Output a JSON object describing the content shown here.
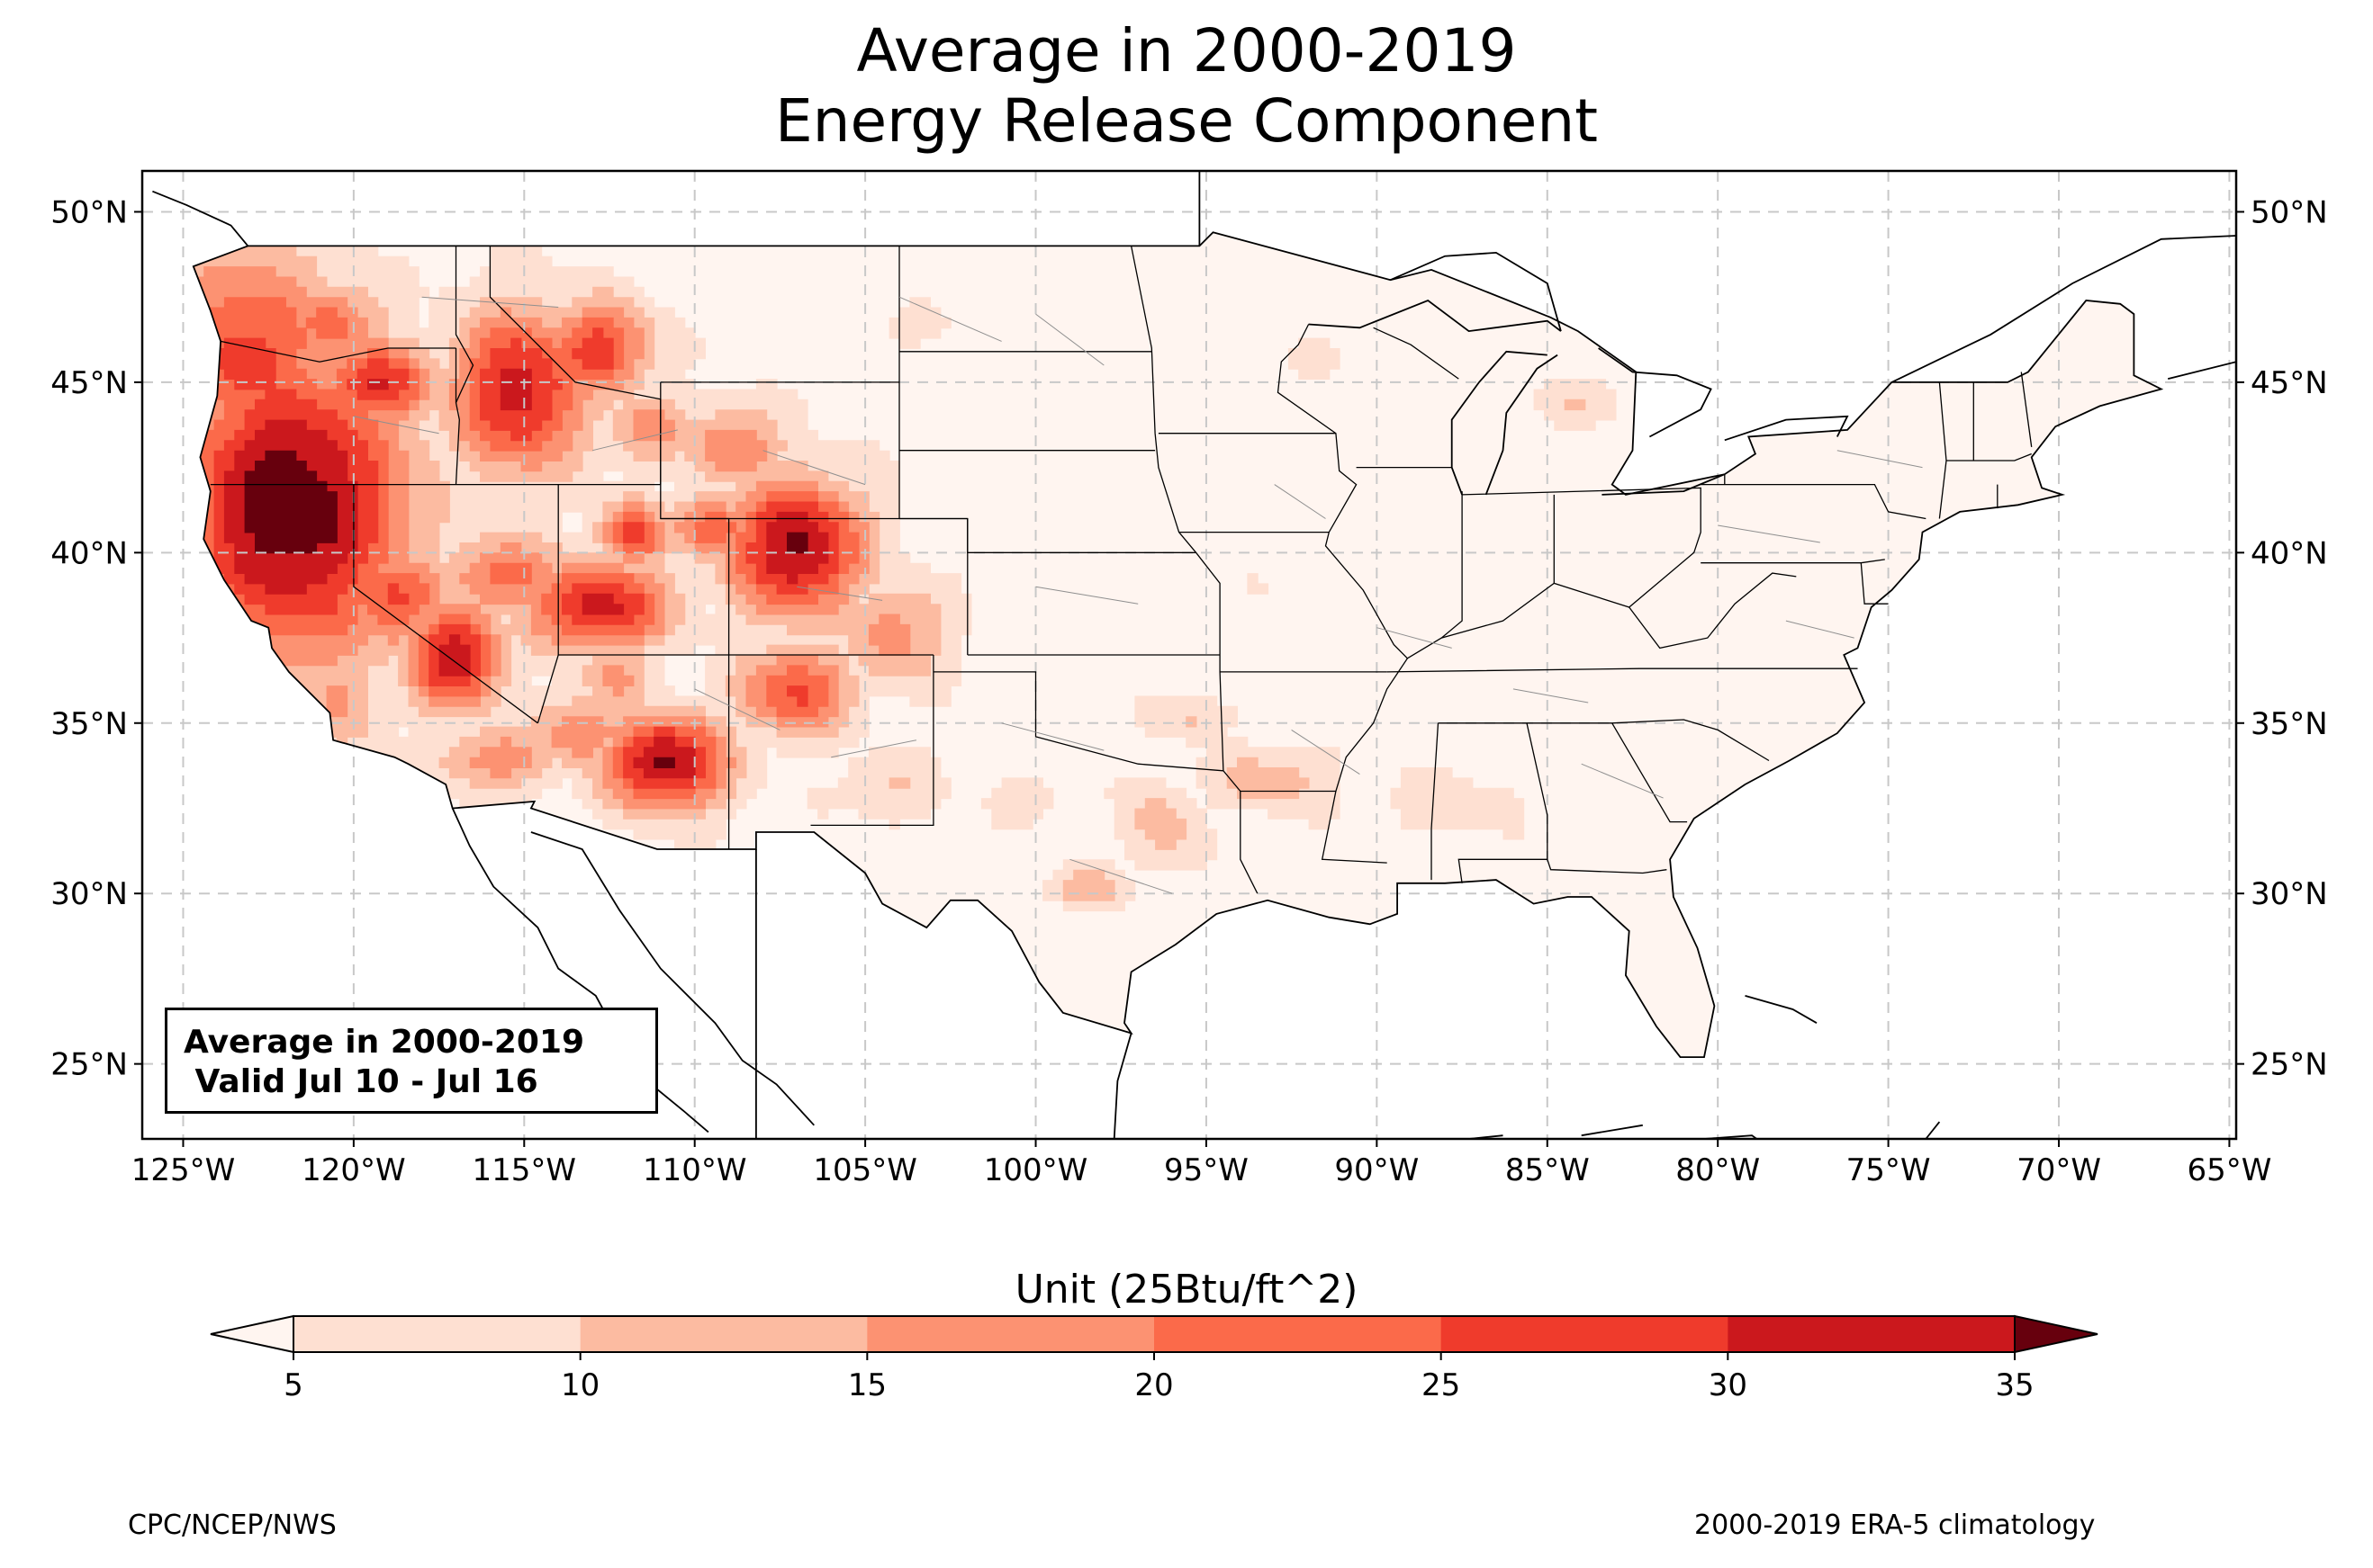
{
  "title": {
    "line1": "Average in 2000-2019",
    "line2": "Energy Release Component"
  },
  "map": {
    "lon_range": [
      -126.2,
      -64.8
    ],
    "lat_range": [
      22.8,
      51.2
    ],
    "lon_ticks": [
      {
        "value": -125,
        "label": "125°W"
      },
      {
        "value": -120,
        "label": "120°W"
      },
      {
        "value": -115,
        "label": "115°W"
      },
      {
        "value": -110,
        "label": "110°W"
      },
      {
        "value": -105,
        "label": "105°W"
      },
      {
        "value": -100,
        "label": "100°W"
      },
      {
        "value": -95,
        "label": "95°W"
      },
      {
        "value": -90,
        "label": "90°W"
      },
      {
        "value": -85,
        "label": "85°W"
      },
      {
        "value": -80,
        "label": "80°W"
      },
      {
        "value": -75,
        "label": "75°W"
      },
      {
        "value": -70,
        "label": "70°W"
      },
      {
        "value": -65,
        "label": "65°W"
      }
    ],
    "lat_ticks": [
      {
        "value": 25,
        "label": "25°N"
      },
      {
        "value": 30,
        "label": "30°N"
      },
      {
        "value": 35,
        "label": "35°N"
      },
      {
        "value": 40,
        "label": "40°N"
      },
      {
        "value": 45,
        "label": "45°N"
      },
      {
        "value": 50,
        "label": "50°N"
      }
    ],
    "gridlines": true
  },
  "legend_box": {
    "line1": "Average in 2000-2019",
    "line2": " Valid Jul 10 - Jul 16"
  },
  "colorbar": {
    "title": "Unit (25Btu/ft^2)",
    "levels": [
      5,
      10,
      15,
      20,
      25,
      30,
      35
    ],
    "colors": [
      "#fee0d2",
      "#fcbba1",
      "#fc9272",
      "#fb6a4a",
      "#ef3b2c",
      "#cb181d",
      "#a50f15"
    ],
    "under_color": "#fff5f0",
    "over_color": "#67000d",
    "extend": "both"
  },
  "field": {
    "levels": [
      5,
      10,
      15,
      20,
      25,
      30,
      35
    ],
    "background_value": 3,
    "blobs": [
      {
        "lon": -122.0,
        "lat": 41.2,
        "rx": 3.4,
        "ry": 4.5,
        "value": 40
      },
      {
        "lon": -123.3,
        "lat": 45.6,
        "rx": 2.8,
        "ry": 3.2,
        "value": 27
      },
      {
        "lon": -120.8,
        "lat": 46.5,
        "rx": 1.6,
        "ry": 1.4,
        "value": 22
      },
      {
        "lon": -119.5,
        "lat": 44.8,
        "rx": 1.8,
        "ry": 1.3,
        "value": 30
      },
      {
        "lon": -115.3,
        "lat": 44.6,
        "rx": 2.0,
        "ry": 2.4,
        "value": 33
      },
      {
        "lon": -113.0,
        "lat": 45.8,
        "rx": 1.6,
        "ry": 1.4,
        "value": 28
      },
      {
        "lon": -117.2,
        "lat": 36.8,
        "rx": 1.4,
        "ry": 1.6,
        "value": 34
      },
      {
        "lon": -119.0,
        "lat": 38.5,
        "rx": 1.5,
        "ry": 1.5,
        "value": 27
      },
      {
        "lon": -115.7,
        "lat": 39.2,
        "rx": 1.7,
        "ry": 1.2,
        "value": 23
      },
      {
        "lon": -113.0,
        "lat": 38.3,
        "rx": 2.2,
        "ry": 1.3,
        "value": 32
      },
      {
        "lon": -112.0,
        "lat": 40.4,
        "rx": 1.0,
        "ry": 1.0,
        "value": 28
      },
      {
        "lon": -109.6,
        "lat": 40.6,
        "rx": 1.3,
        "ry": 1.0,
        "value": 24
      },
      {
        "lon": -107.2,
        "lat": 40.0,
        "rx": 2.0,
        "ry": 2.0,
        "value": 37
      },
      {
        "lon": -107.2,
        "lat": 35.8,
        "rx": 1.7,
        "ry": 1.3,
        "value": 26
      },
      {
        "lon": -111.0,
        "lat": 33.7,
        "rx": 1.8,
        "ry": 1.4,
        "value": 37
      },
      {
        "lon": -113.5,
        "lat": 34.6,
        "rx": 1.5,
        "ry": 1.1,
        "value": 20
      },
      {
        "lon": -116.0,
        "lat": 33.8,
        "rx": 1.8,
        "ry": 1.0,
        "value": 18
      },
      {
        "lon": -120.5,
        "lat": 35.5,
        "rx": 1.3,
        "ry": 1.5,
        "value": 16
      },
      {
        "lon": -109.0,
        "lat": 43.0,
        "rx": 1.5,
        "ry": 1.2,
        "value": 20
      },
      {
        "lon": -111.5,
        "lat": 43.5,
        "rx": 1.4,
        "ry": 1.2,
        "value": 17
      },
      {
        "lon": -104.3,
        "lat": 37.5,
        "rx": 1.5,
        "ry": 1.5,
        "value": 18
      },
      {
        "lon": -112.5,
        "lat": 36.2,
        "rx": 1.2,
        "ry": 1.0,
        "value": 16
      },
      {
        "lon": -104.5,
        "lat": 33.0,
        "rx": 1.5,
        "ry": 1.0,
        "value": 10
      },
      {
        "lon": -98.7,
        "lat": 30.0,
        "rx": 1.1,
        "ry": 0.6,
        "value": 14
      },
      {
        "lon": -96.5,
        "lat": 31.8,
        "rx": 1.0,
        "ry": 1.3,
        "value": 13
      },
      {
        "lon": -93.3,
        "lat": 33.2,
        "rx": 1.8,
        "ry": 0.9,
        "value": 13
      },
      {
        "lon": -95.6,
        "lat": 35.0,
        "rx": 1.1,
        "ry": 0.6,
        "value": 11
      },
      {
        "lon": -100.5,
        "lat": 32.6,
        "rx": 1.0,
        "ry": 0.6,
        "value": 9
      },
      {
        "lon": -88.0,
        "lat": 32.5,
        "rx": 2.0,
        "ry": 0.8,
        "value": 9
      },
      {
        "lon": -84.6,
        "lat": 44.2,
        "rx": 0.9,
        "ry": 0.7,
        "value": 11
      },
      {
        "lon": -92.0,
        "lat": 45.5,
        "rx": 0.8,
        "ry": 0.5,
        "value": 9
      },
      {
        "lon": -103.5,
        "lat": 46.5,
        "rx": 1.0,
        "ry": 0.6,
        "value": 8
      },
      {
        "lon": -95.0,
        "lat": 38.5,
        "rx": 2.0,
        "ry": 1.5,
        "value": 4
      }
    ]
  },
  "credits": {
    "left": "CPC/NCEP/NWS",
    "right": "2000-2019 ERA-5 climatology"
  }
}
